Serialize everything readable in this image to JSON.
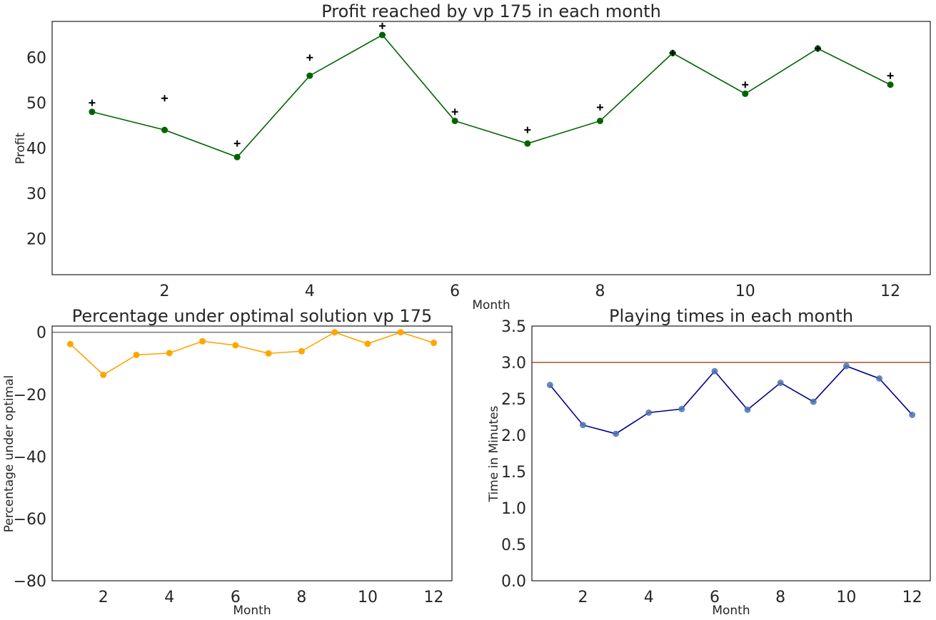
{
  "chart_data": [
    {
      "type": "line",
      "title": "Profit reached by vp 175 in each month",
      "xlabel": "Month",
      "ylabel": "Profit",
      "xlim": [
        0.45,
        12.55
      ],
      "ylim": [
        12,
        68
      ],
      "xticks": [
        2,
        4,
        6,
        8,
        10,
        12
      ],
      "yticks": [
        20,
        30,
        40,
        50,
        60
      ],
      "grid": false,
      "x": [
        1,
        2,
        3,
        4,
        5,
        6,
        7,
        8,
        9,
        10,
        11,
        12
      ],
      "series": [
        {
          "values": [
            48,
            44,
            38,
            56,
            65,
            46,
            41,
            46,
            61,
            52,
            62,
            54
          ],
          "color": "#006400",
          "style": "line-marker"
        },
        {
          "values": [
            50,
            51,
            41,
            60,
            67,
            48,
            44,
            49,
            61,
            54,
            62,
            56
          ],
          "color": "#000000",
          "style": "plus-marker"
        }
      ]
    },
    {
      "type": "line",
      "title": "Percentage under optimal solution vp 175",
      "xlabel": "Month",
      "ylabel": "Percentage under optimal",
      "xlim": [
        0.45,
        12.55
      ],
      "ylim": [
        -80,
        2
      ],
      "xticks": [
        2,
        4,
        6,
        8,
        10,
        12
      ],
      "yticks": [
        0,
        -20,
        -40,
        -60,
        -80
      ],
      "grid": false,
      "reference_line": {
        "y": 0,
        "color": "#808080"
      },
      "x": [
        1,
        2,
        3,
        4,
        5,
        6,
        7,
        8,
        9,
        10,
        11,
        12
      ],
      "series": [
        {
          "values": [
            -3.8,
            -13.7,
            -7.3,
            -6.7,
            -2.9,
            -4.2,
            -6.8,
            -6.1,
            0,
            -3.7,
            0,
            -3.4
          ],
          "color": "#FFA500",
          "style": "line-marker"
        }
      ]
    },
    {
      "type": "line",
      "title": "Playing times in each month",
      "xlabel": "Month",
      "ylabel": "Time in Minutes",
      "xlim": [
        0.45,
        12.55
      ],
      "ylim": [
        0,
        3.5
      ],
      "xticks": [
        2,
        4,
        6,
        8,
        10,
        12
      ],
      "yticks": [
        0.0,
        0.5,
        1.0,
        1.5,
        2.0,
        2.5,
        3.0,
        3.5
      ],
      "grid": false,
      "reference_line": {
        "y": 3.0,
        "color": "#A0522D"
      },
      "x": [
        1,
        2,
        3,
        4,
        5,
        6,
        7,
        8,
        9,
        10,
        11,
        12
      ],
      "series": [
        {
          "values": [
            2.69,
            2.14,
            2.02,
            2.31,
            2.36,
            2.88,
            2.35,
            2.72,
            2.46,
            2.95,
            2.78,
            2.28
          ],
          "color": "#00008B",
          "marker_color": "#4C72B0",
          "style": "line-marker"
        }
      ]
    }
  ]
}
